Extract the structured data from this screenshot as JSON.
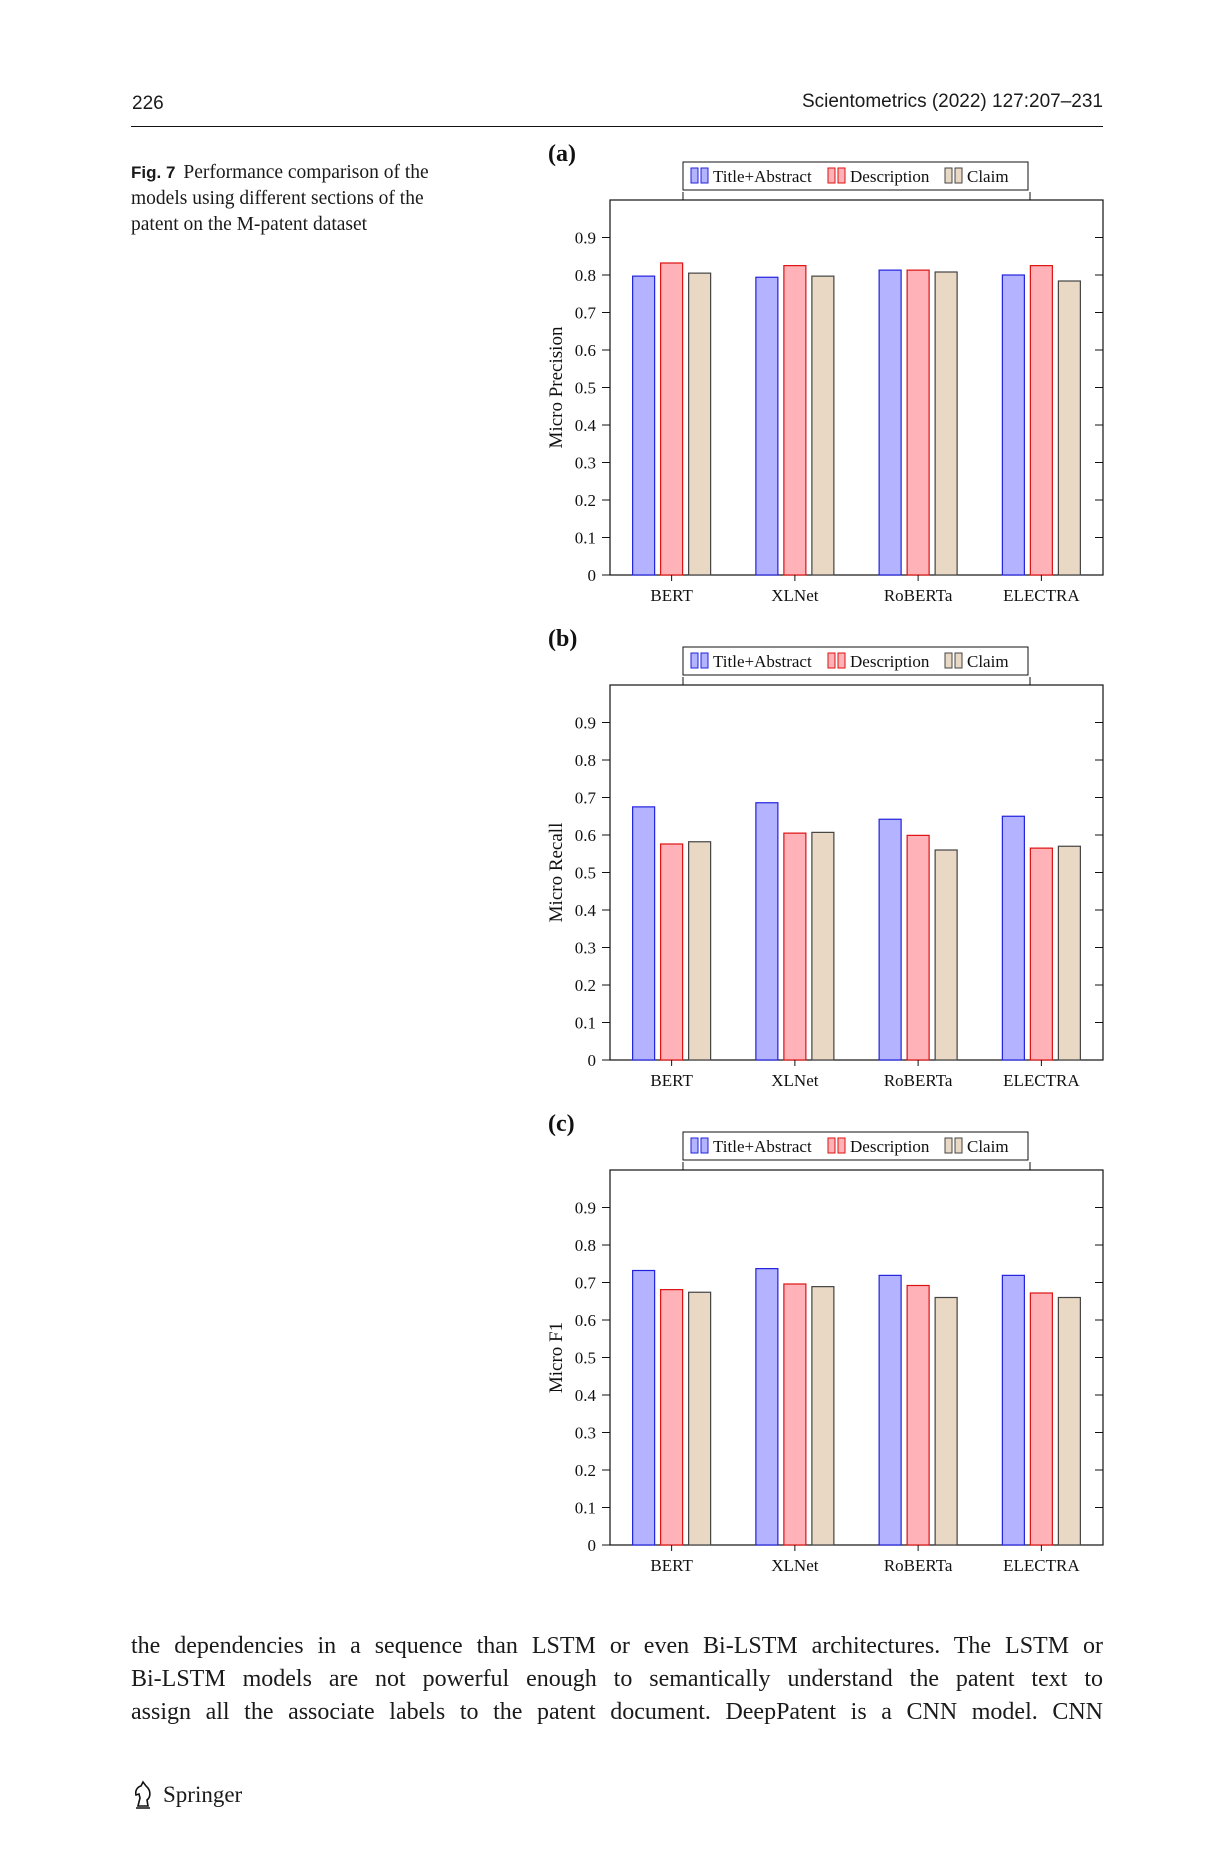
{
  "header": {
    "page_number": "226",
    "journal": "Scientometrics (2022) 127:207–231"
  },
  "caption": {
    "label": "Fig. 7",
    "text": "Performance comparison of the models using different sections of the patent on the M-patent dataset"
  },
  "body_text": [
    "the dependencies in a sequence than LSTM or even Bi-LSTM architectures. The LSTM or",
    "Bi-LSTM models are not powerful enough to semantically understand the patent text to",
    "assign all the associate labels to the patent document. DeepPatent is a CNN model. CNN"
  ],
  "footer": {
    "publisher": "Springer",
    "icon": "springer-knight-logo"
  },
  "colors": {
    "title_abstract": "#b3b3ff",
    "title_abstract_edge": "#2222dd",
    "description": "#ffb3b8",
    "description_edge": "#dd1111",
    "claim": "#e8d8c4",
    "claim_edge": "#444444"
  },
  "chart_data": [
    {
      "type": "bar",
      "panel": "(a)",
      "categories": [
        "BERT",
        "XLNet",
        "RoBERTa",
        "ELECTRA"
      ],
      "series": [
        {
          "name": "Title+Abstract",
          "values": [
            0.797,
            0.794,
            0.813,
            0.8
          ]
        },
        {
          "name": "Description",
          "values": [
            0.832,
            0.825,
            0.813,
            0.825
          ]
        },
        {
          "name": "Claim",
          "values": [
            0.805,
            0.797,
            0.808,
            0.784
          ]
        }
      ],
      "ylabel": "Micro Precision",
      "ylim": [
        0,
        1.0
      ],
      "yticks": [
        "0",
        "0.1",
        "0.2",
        "0.3",
        "0.4",
        "0.5",
        "0.6",
        "0.7",
        "0.8",
        "0.9"
      ],
      "legend": "top-center"
    },
    {
      "type": "bar",
      "panel": "(b)",
      "categories": [
        "BERT",
        "XLNet",
        "RoBERTa",
        "ELECTRA"
      ],
      "series": [
        {
          "name": "Title+Abstract",
          "values": [
            0.675,
            0.686,
            0.642,
            0.65
          ]
        },
        {
          "name": "Description",
          "values": [
            0.576,
            0.605,
            0.599,
            0.565
          ]
        },
        {
          "name": "Claim",
          "values": [
            0.582,
            0.607,
            0.56,
            0.57
          ]
        }
      ],
      "ylabel": "Micro Recall",
      "ylim": [
        0,
        1.0
      ],
      "yticks": [
        "0",
        "0.1",
        "0.2",
        "0.3",
        "0.4",
        "0.5",
        "0.6",
        "0.7",
        "0.8",
        "0.9"
      ],
      "legend": "top-center"
    },
    {
      "type": "bar",
      "panel": "(c)",
      "categories": [
        "BERT",
        "XLNet",
        "RoBERTa",
        "ELECTRA"
      ],
      "series": [
        {
          "name": "Title+Abstract",
          "values": [
            0.732,
            0.737,
            0.719,
            0.719
          ]
        },
        {
          "name": "Description",
          "values": [
            0.681,
            0.696,
            0.692,
            0.672
          ]
        },
        {
          "name": "Claim",
          "values": [
            0.674,
            0.689,
            0.66,
            0.66
          ]
        }
      ],
      "ylabel": "Micro F1",
      "ylim": [
        0,
        1.0
      ],
      "yticks": [
        "0",
        "0.1",
        "0.2",
        "0.3",
        "0.4",
        "0.5",
        "0.6",
        "0.7",
        "0.8",
        "0.9"
      ],
      "legend": "top-center"
    }
  ]
}
